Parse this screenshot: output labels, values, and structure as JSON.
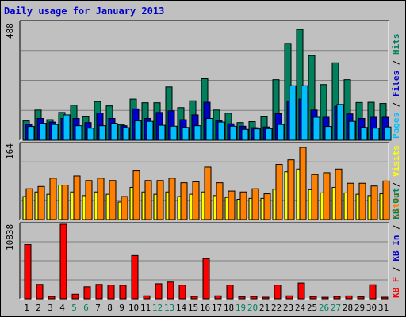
{
  "chart_data": [
    {
      "type": "bar",
      "title": "Daily usage for January 2013",
      "categories": [
        "1",
        "2",
        "3",
        "4",
        "5",
        "6",
        "7",
        "8",
        "9",
        "10",
        "11",
        "12",
        "13",
        "14",
        "15",
        "16",
        "17",
        "18",
        "19",
        "20",
        "21",
        "22",
        "23",
        "24",
        "25",
        "26",
        "27",
        "28",
        "29",
        "30",
        "31"
      ],
      "weekend_days": [
        "5",
        "6",
        "12",
        "13",
        "19",
        "20",
        "26",
        "27"
      ],
      "y_max_label": "488",
      "ylim": [
        0,
        488
      ],
      "legend": [
        "Hits",
        "Files",
        "Pages"
      ],
      "series": [
        {
          "name": "Hits",
          "color": "#00805c",
          "values": [
            80,
            125,
            85,
            115,
            145,
            97,
            160,
            142,
            65,
            170,
            155,
            155,
            220,
            135,
            163,
            254,
            125,
            112,
            73,
            77,
            97,
            250,
            400,
            458,
            350,
            230,
            320,
            250,
            156,
            157,
            152
          ]
        },
        {
          "name": "Files",
          "color": "#0000cc",
          "values": [
            65,
            90,
            75,
            90,
            90,
            73,
            113,
            90,
            60,
            130,
            90,
            115,
            122,
            85,
            105,
            157,
            80,
            68,
            58,
            52,
            55,
            110,
            160,
            170,
            125,
            95,
            140,
            109,
            90,
            95,
            95
          ]
        },
        {
          "name": "Pages",
          "color": "#00bfff",
          "values": [
            57,
            70,
            65,
            105,
            60,
            50,
            60,
            70,
            52,
            80,
            78,
            62,
            58,
            53,
            60,
            90,
            75,
            58,
            45,
            47,
            48,
            65,
            225,
            225,
            95,
            57,
            148,
            78,
            53,
            50,
            55
          ]
        }
      ]
    },
    {
      "type": "bar",
      "y_max_label": "164",
      "ylim": [
        0,
        164
      ],
      "legend": [
        "Visits",
        "Sites"
      ],
      "series": [
        {
          "name": "Visits",
          "color": "#ffff00",
          "values": [
            50,
            60,
            55,
            75,
            60,
            52,
            60,
            55,
            38,
            70,
            60,
            55,
            60,
            50,
            55,
            60,
            52,
            48,
            44,
            46,
            46,
            66,
            104,
            110,
            65,
            58,
            70,
            58,
            55,
            52,
            56
          ]
        },
        {
          "name": "Sites",
          "color": "#ff8000",
          "values": [
            67,
            72,
            90,
            75,
            95,
            85,
            90,
            85,
            50,
            106,
            85,
            85,
            90,
            80,
            82,
            114,
            80,
            62,
            60,
            67,
            56,
            120,
            130,
            157,
            98,
            102,
            110,
            79,
            79,
            73,
            84
          ]
        }
      ]
    },
    {
      "type": "bar",
      "y_max_label": "10838",
      "ylim": [
        0,
        10838
      ],
      "legend": [
        "KB F",
        "KB In",
        "KB Out"
      ],
      "series": [
        {
          "name": "KB F",
          "color": "#ff0000",
          "values": [
            7900,
            2100,
            330,
            10838,
            660,
            1750,
            2100,
            2000,
            1980,
            6300,
            430,
            2200,
            2450,
            2000,
            340,
            5850,
            430,
            2000,
            280,
            330,
            230,
            2000,
            430,
            2300,
            320,
            220,
            330,
            420,
            280,
            2050,
            230
          ]
        }
      ]
    }
  ]
}
